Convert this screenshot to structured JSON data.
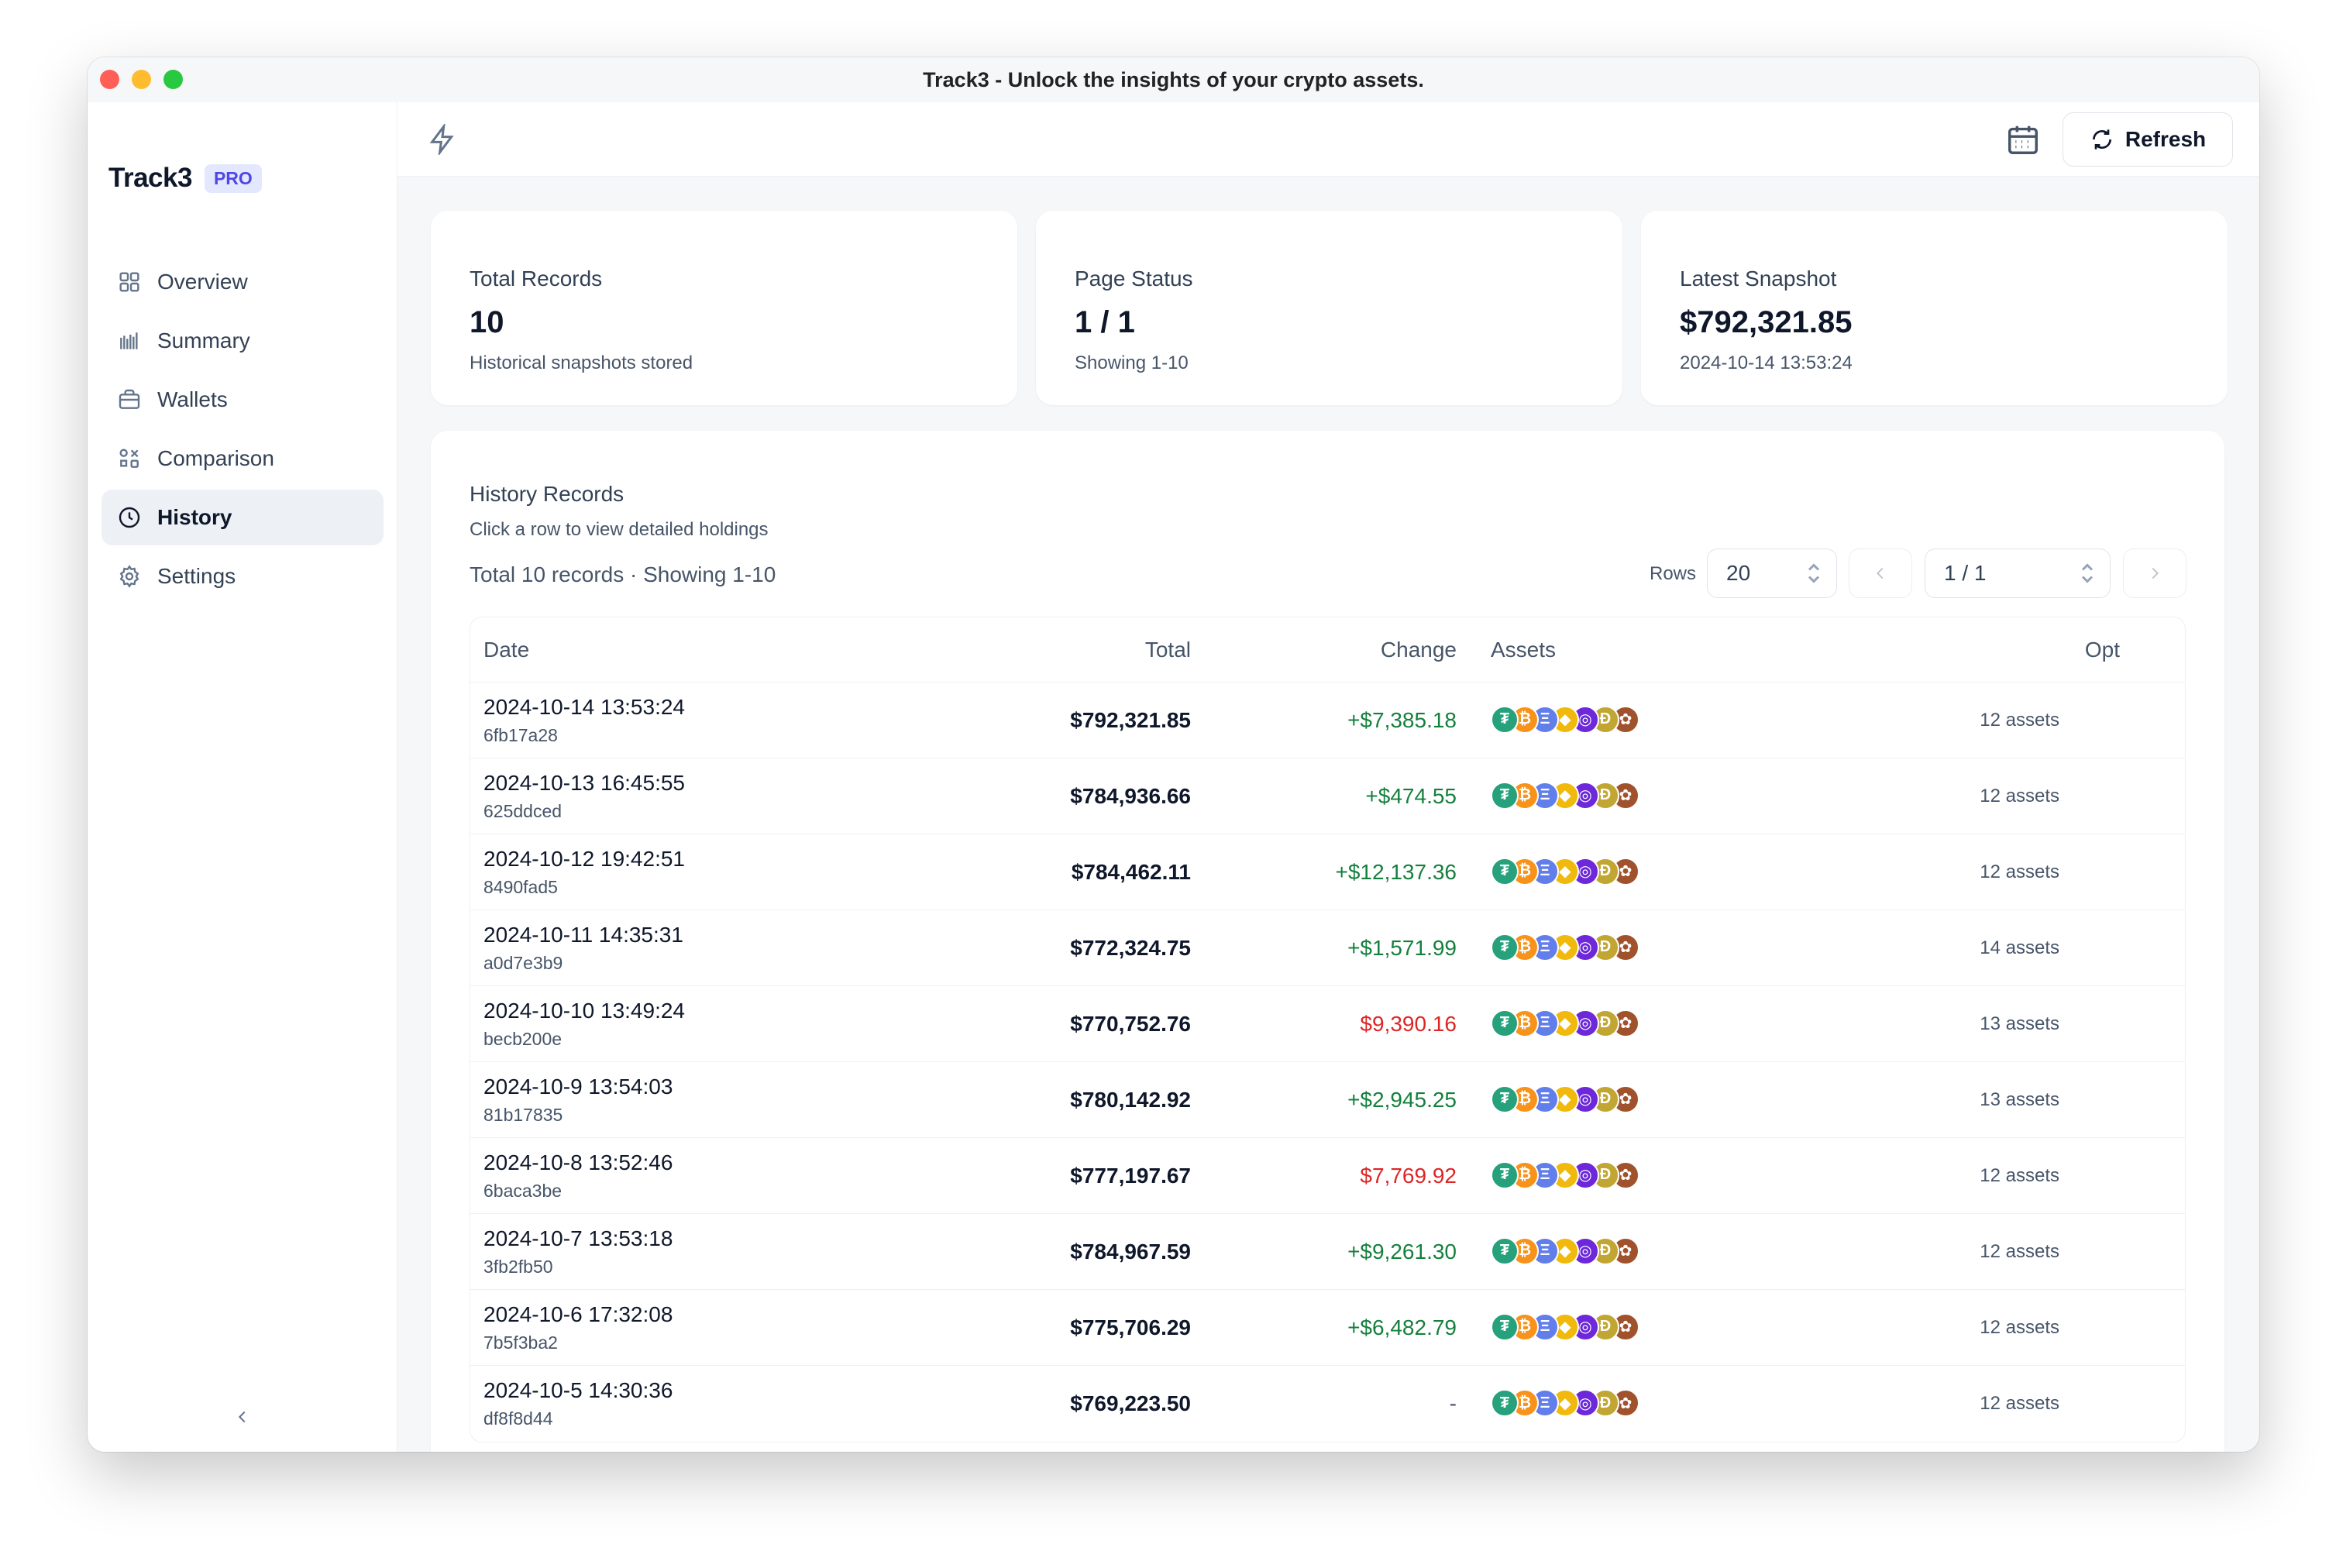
{
  "window": {
    "title": "Track3 - Unlock the insights of your crypto assets."
  },
  "sidebar": {
    "brand": "Track3",
    "badge": "PRO",
    "items": [
      {
        "label": "Overview",
        "icon": "grid-icon"
      },
      {
        "label": "Summary",
        "icon": "bar-chart-icon"
      },
      {
        "label": "Wallets",
        "icon": "briefcase-icon"
      },
      {
        "label": "Comparison",
        "icon": "comparison-icon"
      },
      {
        "label": "History",
        "icon": "clock-icon",
        "active": true
      },
      {
        "label": "Settings",
        "icon": "gear-icon"
      }
    ]
  },
  "topbar": {
    "refresh_label": "Refresh"
  },
  "stats": [
    {
      "title": "Total Records",
      "value": "10",
      "sub": "Historical snapshots stored"
    },
    {
      "title": "Page Status",
      "value": "1 / 1",
      "sub": "Showing 1-10"
    },
    {
      "title": "Latest Snapshot",
      "value": "$792,321.85",
      "sub": "2024-10-14 13:53:24"
    }
  ],
  "history": {
    "title": "History Records",
    "subtitle": "Click a row to view detailed holdings",
    "count_text": "Total 10 records · Showing 1-10",
    "rows_label": "Rows",
    "rows_value": "20",
    "page_value": "1 / 1",
    "columns": [
      "Date",
      "Total",
      "Change",
      "Assets",
      "Opt"
    ],
    "coin_icons": [
      "tether-icon",
      "bitcoin-icon",
      "ethereum-icon",
      "binance-icon",
      "chainlink-icon",
      "dogecoin-icon",
      "pancakeswap-icon"
    ],
    "colors": {
      "positive": "#15803d",
      "negative": "#dc2626",
      "neutral": "#475569"
    },
    "rows": [
      {
        "date": "2024-10-14 13:53:24",
        "id": "6fb17a28",
        "total": "$792,321.85",
        "change": "+$7,385.18",
        "dir": "up",
        "assets": "12 assets"
      },
      {
        "date": "2024-10-13 16:45:55",
        "id": "625ddced",
        "total": "$784,936.66",
        "change": "+$474.55",
        "dir": "up",
        "assets": "12 assets"
      },
      {
        "date": "2024-10-12 19:42:51",
        "id": "8490fad5",
        "total": "$784,462.11",
        "change": "+$12,137.36",
        "dir": "up",
        "assets": "12 assets"
      },
      {
        "date": "2024-10-11 14:35:31",
        "id": "a0d7e3b9",
        "total": "$772,324.75",
        "change": "+$1,571.99",
        "dir": "up",
        "assets": "14 assets"
      },
      {
        "date": "2024-10-10 13:49:24",
        "id": "becb200e",
        "total": "$770,752.76",
        "change": "$9,390.16",
        "dir": "down",
        "assets": "13 assets"
      },
      {
        "date": "2024-10-9 13:54:03",
        "id": "81b17835",
        "total": "$780,142.92",
        "change": "+$2,945.25",
        "dir": "up",
        "assets": "13 assets"
      },
      {
        "date": "2024-10-8 13:52:46",
        "id": "6baca3be",
        "total": "$777,197.67",
        "change": "$7,769.92",
        "dir": "down",
        "assets": "12 assets"
      },
      {
        "date": "2024-10-7 13:53:18",
        "id": "3fb2fb50",
        "total": "$784,967.59",
        "change": "+$9,261.30",
        "dir": "up",
        "assets": "12 assets"
      },
      {
        "date": "2024-10-6 17:32:08",
        "id": "7b5f3ba2",
        "total": "$775,706.29",
        "change": "+$6,482.79",
        "dir": "up",
        "assets": "12 assets"
      },
      {
        "date": "2024-10-5 14:30:36",
        "id": "df8f8d44",
        "total": "$769,223.50",
        "change": "-",
        "dir": "none",
        "assets": "12 assets"
      }
    ]
  }
}
